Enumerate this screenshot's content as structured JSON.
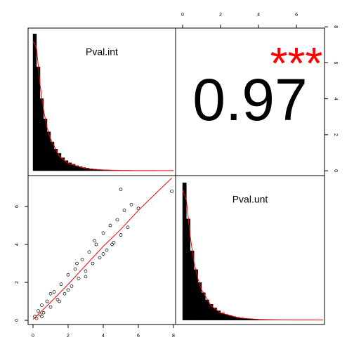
{
  "chart_data": [
    {
      "type": "histogram",
      "title": "Pval.int",
      "color": "#000000",
      "bins": [
        0,
        0.2,
        0.4,
        0.6,
        0.8,
        1,
        1.2,
        1.4,
        1.6,
        1.8,
        2,
        2.2,
        2.4,
        2.6,
        2.8,
        3,
        3.2,
        3.4,
        3.6,
        3.8,
        4,
        4.2,
        4.4,
        4.6,
        4.8,
        5,
        5.2,
        5.4,
        5.6,
        5.8,
        6,
        6.2,
        6.4,
        6.6,
        6.8,
        7,
        7.2,
        7.4,
        7.6,
        7.8,
        8
      ],
      "values": [
        0.95,
        0.72,
        0.5,
        0.36,
        0.27,
        0.2,
        0.15,
        0.12,
        0.09,
        0.07,
        0.055,
        0.045,
        0.035,
        0.028,
        0.022,
        0.018,
        0.014,
        0.011,
        0.009,
        0.007,
        0.006,
        0.005,
        0.004,
        0.003,
        0.003,
        0.002,
        0.002,
        0.002,
        0.001,
        0.001,
        0.001,
        0.001,
        0.001,
        0.001,
        0.001,
        0,
        0,
        0,
        0,
        0.001
      ],
      "curve": {
        "color": "#ff0000",
        "x": [
          0,
          0.2,
          0.4,
          0.6,
          0.8,
          1,
          1.5,
          2,
          3,
          4,
          5,
          6,
          7,
          8
        ],
        "y": [
          0.9,
          0.85,
          0.6,
          0.42,
          0.3,
          0.22,
          0.1,
          0.05,
          0.015,
          0.005,
          0.002,
          0.001,
          0.001,
          0.001
        ]
      },
      "xlim": [
        -0.28,
        8.12
      ],
      "ylim": [
        -0.034,
        0.99
      ]
    },
    {
      "type": "correlation",
      "value_label": "0.97",
      "stars": "***",
      "stars_color": "#ff0000",
      "xlim": [
        -0.37,
        7.48
      ],
      "xticks": [
        0,
        2,
        4,
        6
      ],
      "ylim": [
        -0.27,
        7.93
      ],
      "yticks": [
        0,
        2,
        4,
        6,
        8
      ]
    },
    {
      "type": "scatter",
      "color": "#000000",
      "x": [
        0.1,
        0.2,
        0.3,
        0.4,
        0.5,
        0.6,
        0.8,
        1.0,
        1.2,
        1.4,
        1.6,
        1.8,
        2.0,
        2.2,
        2.4,
        2.6,
        2.8,
        3.0,
        3.2,
        3.4,
        3.6,
        3.8,
        4.0,
        4.2,
        4.4,
        4.6,
        4.8,
        5.0,
        5.2,
        5.4,
        5.6,
        0.5,
        1.0,
        1.5,
        2.0,
        2.5,
        3.0,
        3.5,
        4.0,
        4.5,
        5.0,
        6.0,
        7.9
      ],
      "values": [
        0.2,
        0.1,
        0.5,
        0.3,
        0.8,
        0.4,
        1.0,
        0.7,
        1.5,
        1.1,
        1.9,
        1.4,
        2.4,
        1.8,
        2.7,
        2.2,
        3.2,
        2.6,
        3.6,
        3.0,
        4.0,
        3.3,
        4.6,
        3.7,
        5.0,
        4.1,
        5.3,
        4.5,
        5.8,
        4.9,
        6.1,
        0.2,
        1.4,
        1.0,
        1.6,
        3.0,
        2.3,
        4.2,
        3.5,
        4.0,
        6.9,
        5.9,
        6.8
      ],
      "fit": {
        "color": "#ff0000",
        "x": [
          0,
          1,
          2,
          3,
          4,
          5,
          6,
          7,
          7.9
        ],
        "y": [
          0.05,
          0.95,
          1.9,
          2.9,
          3.9,
          4.8,
          5.8,
          6.7,
          7.5
        ]
      },
      "xlim": [
        -0.28,
        8.12
      ],
      "xticks": [
        0,
        2,
        4,
        6,
        8
      ],
      "ylim": [
        -0.22,
        7.63
      ],
      "yticks": [
        0,
        2,
        4,
        6
      ]
    },
    {
      "type": "histogram",
      "title": "Pval.unt",
      "color": "#000000",
      "bins": [
        0,
        0.2,
        0.4,
        0.6,
        0.8,
        1,
        1.2,
        1.4,
        1.6,
        1.8,
        2,
        2.2,
        2.4,
        2.6,
        2.8,
        3,
        3.2,
        3.4,
        3.6,
        3.8,
        4,
        4.2,
        4.4,
        4.6,
        4.8,
        5,
        5.2,
        5.4,
        5.6,
        5.8,
        6,
        6.2,
        6.4,
        6.6,
        6.8,
        7,
        7.2,
        7.4
      ],
      "values": [
        0.95,
        0.7,
        0.48,
        0.35,
        0.26,
        0.19,
        0.14,
        0.11,
        0.085,
        0.065,
        0.05,
        0.04,
        0.032,
        0.025,
        0.02,
        0.016,
        0.012,
        0.01,
        0.008,
        0.006,
        0.005,
        0.004,
        0.003,
        0.003,
        0.002,
        0.002,
        0.001,
        0.001,
        0.001,
        0.001,
        0.001,
        0,
        0,
        0.001,
        0,
        0,
        0.001
      ],
      "curve": {
        "color": "#ff0000",
        "x": [
          0,
          0.2,
          0.4,
          0.6,
          0.8,
          1,
          1.5,
          2,
          3,
          4,
          5,
          6,
          7,
          7.4
        ],
        "y": [
          0.9,
          0.83,
          0.58,
          0.4,
          0.29,
          0.21,
          0.1,
          0.05,
          0.015,
          0.005,
          0.002,
          0.001,
          0.001,
          0.001
        ]
      },
      "xlim": [
        -0.37,
        7.48
      ],
      "ylim": [
        -0.03,
        1.0
      ]
    }
  ]
}
